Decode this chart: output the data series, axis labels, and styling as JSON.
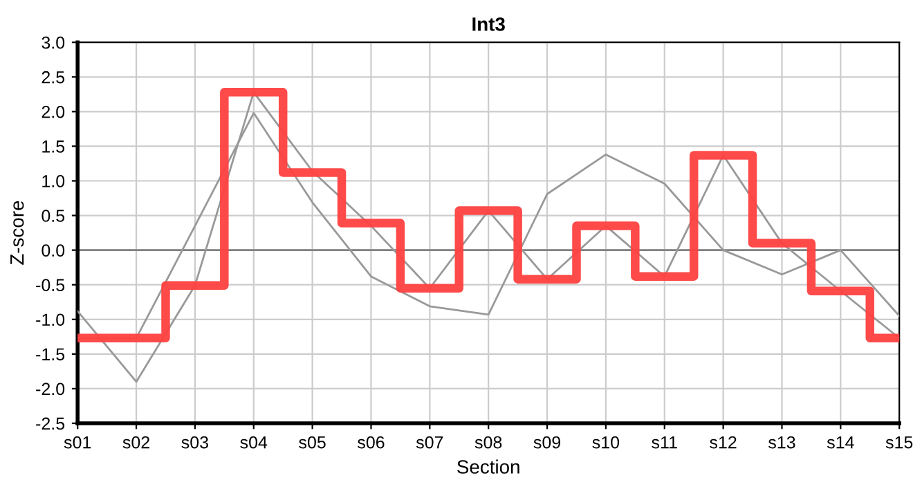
{
  "chart_data": {
    "type": "line",
    "title": "Int3",
    "xlabel": "Section",
    "ylabel": "Z-score",
    "categories": [
      "s01",
      "s02",
      "s03",
      "s04",
      "s05",
      "s06",
      "s07",
      "s08",
      "s09",
      "s10",
      "s11",
      "s12",
      "s13",
      "s14",
      "s15"
    ],
    "series": [
      {
        "color": "#999999",
        "values": [
          -0.88,
          -1.9,
          -0.51,
          2.28,
          1.14,
          0.35,
          -0.55,
          0.57,
          -0.42,
          0.35,
          -0.38,
          1.37,
          0.1,
          -0.59,
          -1.27
        ]
      },
      {
        "color": "#999999",
        "values": [
          -1.27,
          -1.27,
          0.35,
          1.98,
          0.69,
          -0.38,
          -0.81,
          -0.93,
          0.81,
          1.38,
          0.96,
          0.0,
          -0.35,
          0.0,
          -0.95
        ]
      },
      {
        "type": "step",
        "color": "#ff4040",
        "values": [
          -1.27,
          -1.27,
          -0.51,
          2.28,
          1.12,
          0.39,
          -0.55,
          0.57,
          -0.42,
          0.35,
          -0.38,
          1.37,
          0.1,
          -0.59,
          -1.27
        ]
      }
    ],
    "ylim": [
      -2.5,
      3.0
    ],
    "yticks": [
      -2.5,
      {
        "value": -2,
        "label": "-2.0"
      },
      -1.5,
      {
        "value": -1,
        "label": "-1.0"
      },
      -0.5,
      {
        "value": 0,
        "label": "0.0"
      },
      0.5,
      {
        "value": 1,
        "label": "1.0"
      },
      1.5,
      {
        "value": 2,
        "label": "2.0"
      },
      2.5,
      {
        "value": 3,
        "label": "3.0"
      }
    ],
    "ref_lines": [
      {
        "axis": "y",
        "value": 0,
        "color": "#808080"
      }
    ],
    "grid": true,
    "legend": false,
    "marker": "none",
    "line_style": "solid"
  }
}
